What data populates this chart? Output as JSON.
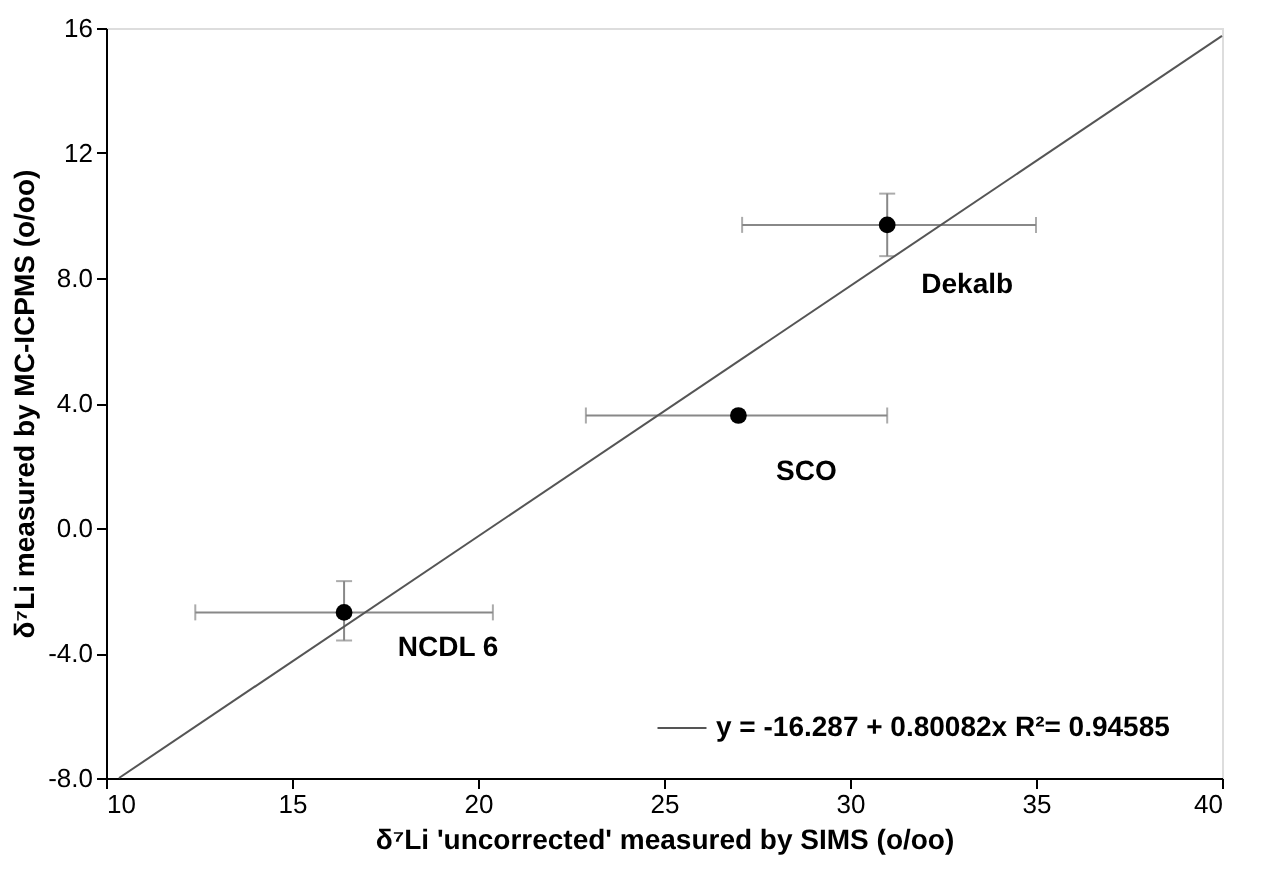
{
  "chart_data": {
    "type": "scatter",
    "xlabel": "δ⁷Li 'uncorrected' measured by SIMS (o/oo)",
    "ylabel": "δ⁷Li measured by MC-ICPMS (o/oo)",
    "xlim": [
      10,
      40
    ],
    "xticks": [
      10,
      15,
      20,
      25,
      30,
      35,
      40
    ],
    "ylim": [
      -8,
      16
    ],
    "yticks": [
      {
        "value": -8,
        "label": "-8.0"
      },
      {
        "value": -4,
        "label": "-4.0"
      },
      {
        "value": 0,
        "label": "0.0"
      },
      {
        "value": 4,
        "label": "4.0"
      },
      {
        "value": 8,
        "label": "8.0"
      },
      {
        "value": 12,
        "label": "12"
      },
      {
        "value": 16,
        "label": "16"
      }
    ],
    "grid": false,
    "legend": "bottom right",
    "marker": "circle",
    "series": [
      {
        "color": "#000000",
        "x": [
          16.4,
          27.0,
          31.0
        ],
        "values": [
          -2.7,
          3.6,
          9.7
        ],
        "errors": [
          [
            -3.6,
            -1.7
          ],
          null,
          [
            8.7,
            10.7
          ]
        ],
        "xerrors": [
          [
            12.4,
            20.4
          ],
          [
            22.9,
            31.0
          ],
          [
            27.1,
            35.0
          ]
        ]
      },
      {
        "type": "line",
        "name": "y = -16.287 + 0.80082x   R²= 0.94585",
        "color": "#555555",
        "line_style": "solid",
        "marker": "none",
        "x": [
          10.35,
          40
        ],
        "values": [
          -8.0,
          15.75
        ]
      }
    ],
    "annotations": [
      {
        "text": "Dekalb",
        "x": 31.0,
        "y": 9.7
      },
      {
        "text": "SCO",
        "x": 27.0,
        "y": 3.6
      },
      {
        "text": "NCDL 6",
        "x": 16.4,
        "y": -2.7
      }
    ]
  }
}
